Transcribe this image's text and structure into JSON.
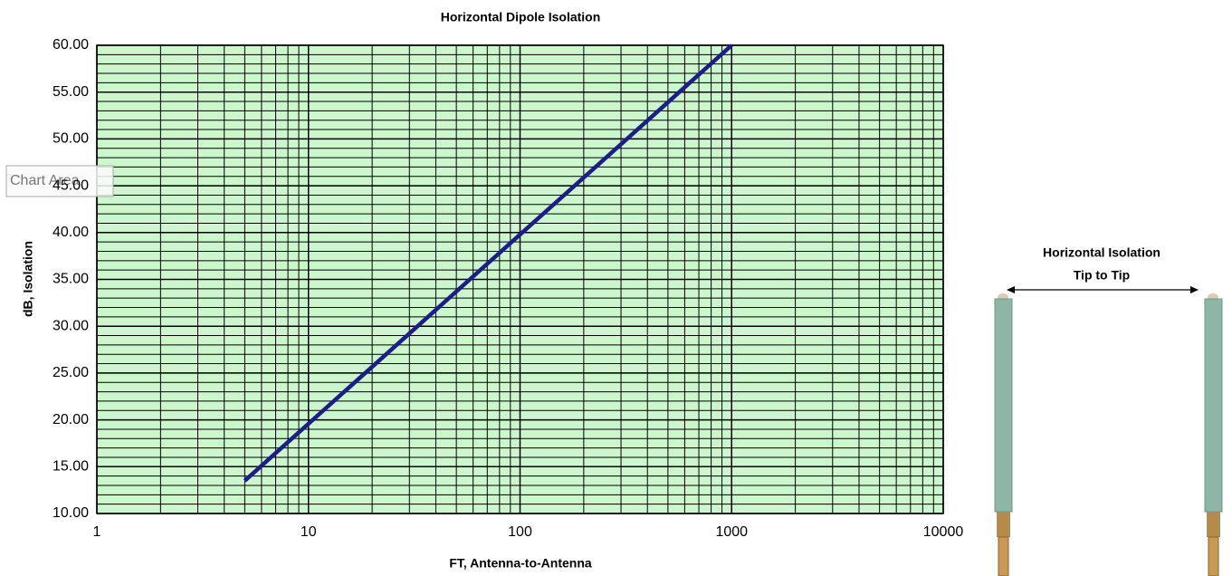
{
  "chart_data": {
    "type": "line",
    "title": "Horizontal Dipole Isolation",
    "xlabel": "FT, Antenna-to-Antenna",
    "ylabel": "dB, Isolation",
    "x": [
      5,
      1000
    ],
    "values": [
      13.5,
      60
    ],
    "color": "#1c1c8a",
    "xlim": [
      1,
      10000
    ],
    "ylim": [
      10,
      60
    ],
    "xticks": [
      1,
      10,
      100,
      1000,
      10000
    ],
    "yticks": [
      {
        "value": 10,
        "label": "10.00"
      },
      {
        "value": 15,
        "label": "15.00"
      },
      {
        "value": 20,
        "label": "20.00"
      },
      {
        "value": 25,
        "label": "25.00"
      },
      {
        "value": 30,
        "label": "30.00"
      },
      {
        "value": 35,
        "label": "35.00"
      },
      {
        "value": 40,
        "label": "40.00"
      },
      {
        "value": 45,
        "label": "45.00"
      },
      {
        "value": 50,
        "label": "50.00"
      },
      {
        "value": 55,
        "label": "55.00"
      },
      {
        "value": 60,
        "label": "60.00"
      }
    ],
    "xscale": "log",
    "grid": true,
    "minor_grid": true,
    "plot_background": "#ccf7cc"
  },
  "tooltip": "Chart Area",
  "diagram": {
    "title": "Horizontal Isolation",
    "subtitle": "Tip to Tip"
  }
}
